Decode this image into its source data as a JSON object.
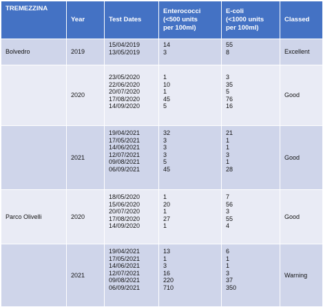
{
  "header": {
    "location": "TREMEZZINA",
    "year": "Year",
    "test_dates": "Test Dates",
    "enterococci": [
      "Enterococci",
      "(<500 units",
      "per 100ml)"
    ],
    "ecoli": [
      "E-coli",
      "(<1000 units",
      "per 100ml)"
    ],
    "classed": "Classed"
  },
  "rows": [
    {
      "location": "Bolvedro",
      "year": "2019",
      "dates": [
        "15/04/2019",
        "13/05/2019"
      ],
      "enterococci": [
        "14",
        "3"
      ],
      "ecoli": [
        "55",
        "8"
      ],
      "classed": "Excellent"
    },
    {
      "location": "",
      "year": "2020",
      "dates": [
        "23/05/2020",
        "22/06/2020",
        "20/07/2020",
        "17/08/2020",
        "14/09/2020"
      ],
      "enterococci": [
        "1",
        "10",
        "1",
        "45",
        "5"
      ],
      "ecoli": [
        "3",
        "35",
        "5",
        "76",
        "16"
      ],
      "classed": "Good"
    },
    {
      "location": "",
      "year": "2021",
      "dates": [
        "19/04/2021",
        "17/05/2021",
        "14/06/2021",
        "12/07/2021",
        "09/08/2021",
        "06/09/2021"
      ],
      "enterococci": [
        "32",
        "3",
        "3",
        "3",
        "5",
        "45"
      ],
      "ecoli": [
        "21",
        "1",
        "1",
        "3",
        "1",
        "28"
      ],
      "classed": "Good"
    },
    {
      "location": "Parco Olivelli",
      "year": "2020",
      "dates": [
        "18/05/2020",
        "15/06/2020",
        "20/07/2020",
        "17/08/2020",
        "14/09/2020"
      ],
      "enterococci": [
        "1",
        "20",
        "1",
        "27",
        "1"
      ],
      "ecoli": [
        "7",
        "56",
        "3",
        "55",
        "4"
      ],
      "classed": "Good"
    },
    {
      "location": "",
      "year": "2021",
      "dates": [
        "19/04/2021",
        "17/05/2021",
        "14/06/2021",
        "12/07/2021",
        "09/08/2021",
        "06/09/2021"
      ],
      "enterococci": [
        "13",
        "1",
        "3",
        "16",
        "220",
        "710"
      ],
      "ecoli": [
        "6",
        "1",
        "1",
        "3",
        "37",
        "350"
      ],
      "classed": "Warning"
    }
  ],
  "colors": {
    "header_bg": "#4472c4",
    "header_text": "#ffffff",
    "row_dark": "#cfd5ea",
    "row_light": "#e9ebf5"
  }
}
